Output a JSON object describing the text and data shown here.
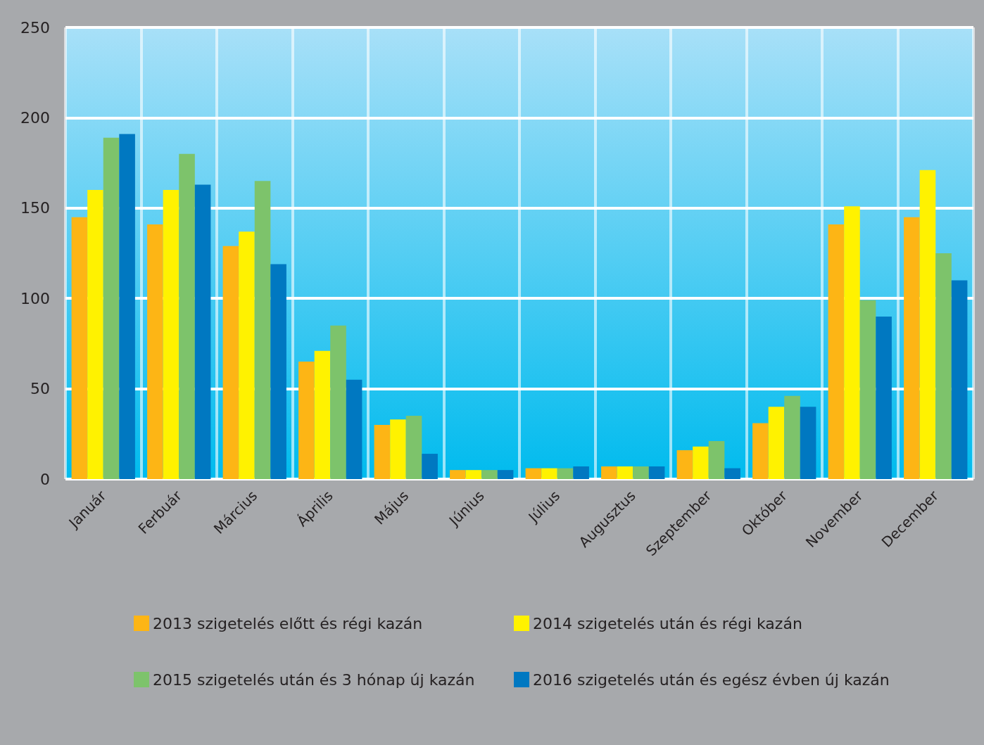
{
  "chart_data": {
    "type": "bar",
    "categories": [
      "Január",
      "Ferbuár",
      "Március",
      "Április",
      "Május",
      "Június",
      "Július",
      "Augusztus",
      "Szeptember",
      "Október",
      "November",
      "December"
    ],
    "series": [
      {
        "name": "2013 szigetelés előtt és régi kazán",
        "color": "#fdb515",
        "values": [
          145,
          141,
          129,
          65,
          30,
          5,
          6,
          7,
          16,
          31,
          141,
          145
        ]
      },
      {
        "name": "2014 szigetelés után és régi kazán",
        "color": "#fff200",
        "values": [
          160,
          160,
          137,
          71,
          33,
          5,
          6,
          7,
          18,
          40,
          151,
          171
        ]
      },
      {
        "name": "2015 szigetelés után és 3 hónap új kazán",
        "color": "#7dc36b",
        "values": [
          189,
          180,
          165,
          85,
          35,
          5,
          6,
          7,
          21,
          46,
          99,
          125
        ]
      },
      {
        "name": "2016 szigetelés után és egész évben új kazán",
        "color": "#0078c1",
        "values": [
          191,
          163,
          119,
          55,
          14,
          5,
          7,
          7,
          6,
          40,
          90,
          110
        ]
      }
    ],
    "ylim": [
      0,
      250
    ],
    "yticks": [
      0,
      50,
      100,
      150,
      200,
      250
    ],
    "grid": true,
    "legend": "bottom"
  }
}
